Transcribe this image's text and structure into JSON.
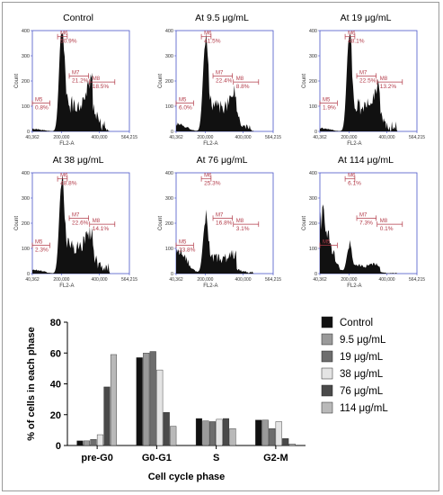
{
  "histograms": [
    {
      "title": "Control",
      "gates": {
        "M5": "0.8%",
        "M6": "50.9%",
        "M7": "21.2%",
        "M8": "18.5%"
      },
      "peak": 1.0,
      "s": 0.36,
      "g2": 0.27,
      "preg0": 0.03
    },
    {
      "title": "At 9.5 μg/mL",
      "gates": {
        "M5": "6.0%",
        "M6": "41.5%",
        "M7": "22.4%",
        "M8": "8.8%"
      },
      "peak": 0.86,
      "s": 0.32,
      "g2": 0.17,
      "preg0": 0.09
    },
    {
      "title": "At 19 μg/mL",
      "gates": {
        "M5": "1.9%",
        "M6": "48.1%",
        "M7": "22.5%",
        "M8": "13.2%"
      },
      "peak": 0.92,
      "s": 0.33,
      "g2": 0.2,
      "preg0": 0.04
    },
    {
      "title": "At 38 μg/mL",
      "gates": {
        "M5": "2.3%",
        "M6": "48.8%",
        "M7": "22.6%",
        "M8": "14.1%"
      },
      "peak": 0.88,
      "s": 0.34,
      "g2": 0.22,
      "preg0": 0.05
    },
    {
      "title": "At 76 μg/mL",
      "gates": {
        "M5": "23.8%",
        "M6": "25.3%",
        "M7": "16.8%",
        "M8": "3.1%"
      },
      "peak": 0.5,
      "s": 0.2,
      "g2": 0.05,
      "preg0": 0.3
    },
    {
      "title": "At 114 μg/mL",
      "gates": {
        "M5": "",
        "M6": "6.1%",
        "M7": "7.3%",
        "M8": "0.1%"
      },
      "peak": 0.25,
      "s": 0.1,
      "g2": 0.02,
      "preg0": 0.7
    }
  ],
  "histogram_axis": {
    "ylabel": "Count",
    "xlabel": "FL2-A",
    "yticks": [
      "0",
      "100",
      "200",
      "300",
      "400"
    ],
    "xticks": [
      "40,362",
      "200,000",
      "400,000",
      "564,215"
    ]
  },
  "chart_data": {
    "type": "bar",
    "xlabel": "Cell cycle phase",
    "ylabel": "% of cells in each phase",
    "ylim": [
      0,
      80
    ],
    "yticks": [
      0,
      20,
      40,
      60,
      80
    ],
    "grid": false,
    "legend_position": "right",
    "categories": [
      "pre-G0",
      "G0-G1",
      "S",
      "G2-M"
    ],
    "series": [
      {
        "name": "Control",
        "color": "#111111",
        "values": [
          3,
          57,
          17.5,
          16.5
        ]
      },
      {
        "name": "9.5 μg/mL",
        "color": "#9a9a9a",
        "values": [
          3,
          60,
          16,
          16.5
        ]
      },
      {
        "name": "19 μg/mL",
        "color": "#6d6d6d",
        "values": [
          4,
          61,
          15.5,
          11
        ]
      },
      {
        "name": "38 μg/mL",
        "color": "#e4e4e4",
        "values": [
          7,
          49,
          17,
          15.5
        ]
      },
      {
        "name": "76 μg/mL",
        "color": "#4a4a4a",
        "values": [
          38,
          21.5,
          17.5,
          4.5
        ]
      },
      {
        "name": "114 μg/mL",
        "color": "#b9b9b9",
        "values": [
          59,
          12.5,
          11,
          1
        ]
      }
    ]
  }
}
